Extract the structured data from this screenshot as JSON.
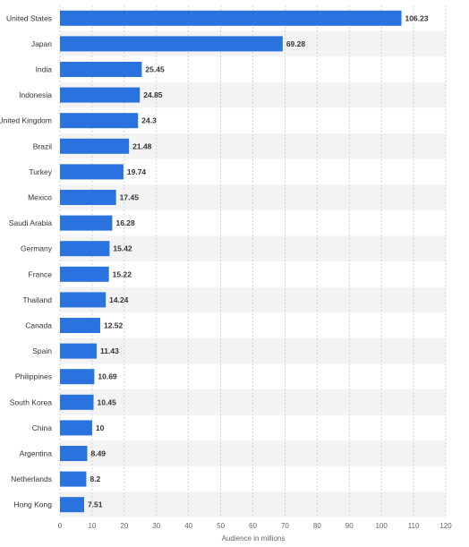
{
  "chart_data": {
    "type": "bar",
    "orientation": "horizontal",
    "categories": [
      "United States",
      "Japan",
      "India",
      "Indonesia",
      "United Kingdom",
      "Brazil",
      "Turkey",
      "Mexico",
      "Saudi Arabia",
      "Germany",
      "France",
      "Thailand",
      "Canada",
      "Spain",
      "Philippines",
      "South Korea",
      "China",
      "Argentina",
      "Netherlands",
      "Hong Kong"
    ],
    "values": [
      106.23,
      69.28,
      25.45,
      24.85,
      24.3,
      21.48,
      19.74,
      17.45,
      16.28,
      15.42,
      15.22,
      14.24,
      12.52,
      11.43,
      10.69,
      10.45,
      10,
      8.49,
      8.2,
      7.51
    ],
    "value_labels": [
      "106.23",
      "69.28",
      "25.45",
      "24.85",
      "24.3",
      "21.48",
      "19.74",
      "17.45",
      "16.28",
      "15.42",
      "15.22",
      "14.24",
      "12.52",
      "11.43",
      "10.69",
      "10.45",
      "10",
      "8.49",
      "8.2",
      "7.51"
    ],
    "xlabel": "Audience in millions",
    "ylabel": "",
    "xlim": [
      0,
      120
    ],
    "xticks": [
      "0",
      "10",
      "20",
      "30",
      "40",
      "50",
      "60",
      "70",
      "80",
      "90",
      "100",
      "110",
      "120"
    ],
    "grid": "vertical dashed",
    "legend": "none",
    "colors": {
      "bar": "#2a73de",
      "stripe": "#f3f3f3",
      "grid": "#c9c9c9",
      "label": "#333333",
      "tick": "#666666"
    }
  }
}
